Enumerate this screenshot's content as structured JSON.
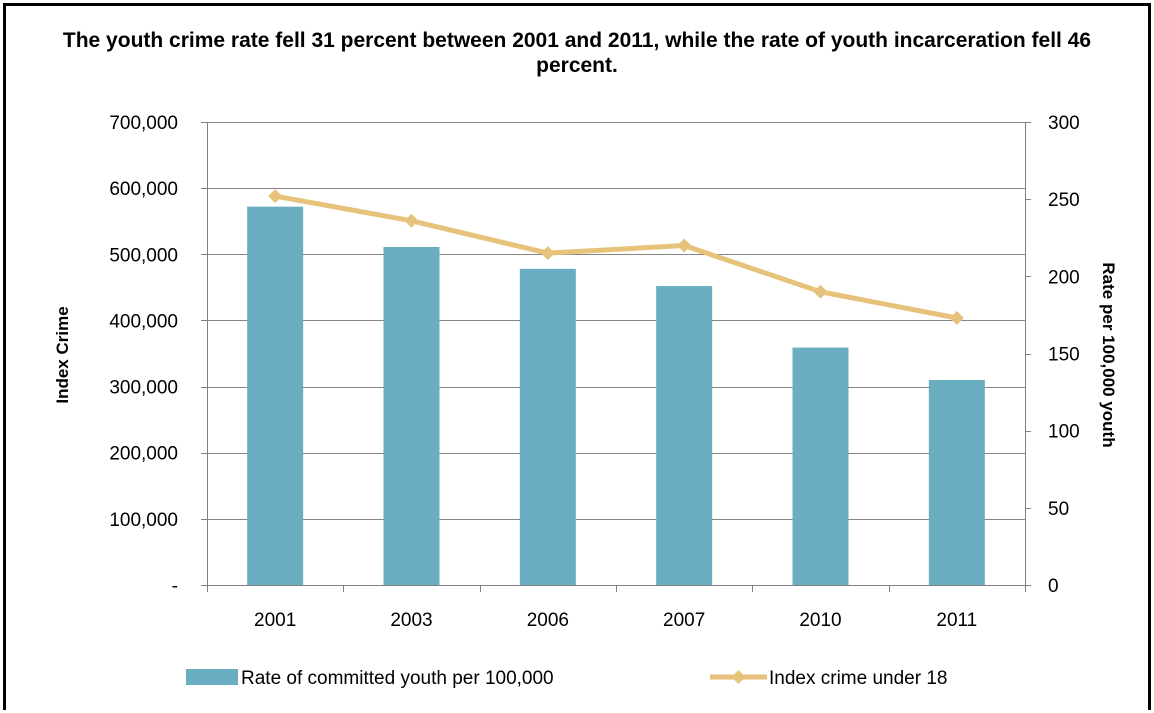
{
  "title": "The youth crime rate fell 31 percent between 2001 and 2011, while the rate of youth incarceration fell 46 percent.",
  "colors": {
    "bar": "#6aaec1",
    "line": "#e6c27a",
    "grid": "#868686",
    "axis": "#808080"
  },
  "chart_data": {
    "type": "bar",
    "title": "The youth crime rate fell 31 percent between 2001 and 2011, while the rate of youth incarceration fell 46 percent.",
    "categories": [
      "2001",
      "2003",
      "2006",
      "2007",
      "2010",
      "2011"
    ],
    "left_axis": {
      "label": "Index Crime",
      "ylim": [
        0,
        700000
      ],
      "ticks": [
        0,
        100000,
        200000,
        300000,
        400000,
        500000,
        600000,
        700000
      ],
      "tick_labels": [
        "-",
        "100,000",
        "200,000",
        "300,000",
        "400,000",
        "500,000",
        "600,000",
        "700,000"
      ]
    },
    "right_axis": {
      "label": "Rate per 100,000 youth",
      "ylim": [
        0,
        300
      ],
      "ticks": [
        0,
        50,
        100,
        150,
        200,
        250,
        300
      ],
      "tick_labels": [
        "0",
        "50",
        "100",
        "150",
        "200",
        "250",
        "300"
      ]
    },
    "series": [
      {
        "name": "Rate of committed youth per 100,000",
        "type": "bar",
        "axis": "left",
        "values": [
          572000,
          511000,
          478000,
          452000,
          359000,
          310000
        ]
      },
      {
        "name": "Index crime under 18",
        "type": "line",
        "axis": "right",
        "marker": "diamond",
        "values": [
          252,
          236,
          215,
          220,
          190,
          173
        ]
      }
    ],
    "grid": true,
    "legend": "bottom"
  }
}
